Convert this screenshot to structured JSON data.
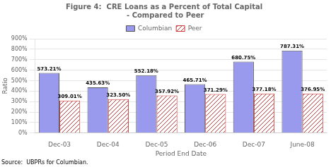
{
  "chart_data": {
    "type": "bar",
    "title": "Figure 4:  CRE Loans as a Percent of Total Capital\n - Compared to Peer",
    "xlabel": "Period End Date",
    "ylabel": "Ratio",
    "categories": [
      "Dec-03",
      "Dec-04",
      "Dec-05",
      "Dec-06",
      "Dec-07",
      "June-08"
    ],
    "series": [
      {
        "name": "Columbian",
        "color": "#9999ee",
        "values": [
          573.21,
          435.63,
          552.18,
          465.71,
          680.75,
          787.31
        ],
        "value_labels": [
          "573.21%",
          "435.63%",
          "552.18%",
          "465.71%",
          "680.75%",
          "787.31%"
        ]
      },
      {
        "name": "Peer",
        "color": "#cc3333",
        "values": [
          309.01,
          323.5,
          357.92,
          371.29,
          377.18,
          376.95
        ],
        "value_labels": [
          "309.01%",
          "323.50%",
          "357.92%",
          "371.29%",
          "377.18%",
          "376.95%"
        ]
      }
    ],
    "ylim": [
      0,
      900
    ],
    "yticks": [
      {
        "value": 0,
        "label": "0%"
      },
      {
        "value": 100,
        "label": "100%"
      },
      {
        "value": 200,
        "label": "200%"
      },
      {
        "value": 300,
        "label": "300%"
      },
      {
        "value": 400,
        "label": "400%"
      },
      {
        "value": 500,
        "label": "500%"
      },
      {
        "value": 600,
        "label": "600%"
      },
      {
        "value": 700,
        "label": "700%"
      },
      {
        "value": 800,
        "label": "800%"
      },
      {
        "value": 900,
        "label": "900%"
      }
    ],
    "grid": true,
    "legend": "top",
    "data_labels": true,
    "annotations": [
      "Source:  UBPRs for Columbian."
    ]
  }
}
